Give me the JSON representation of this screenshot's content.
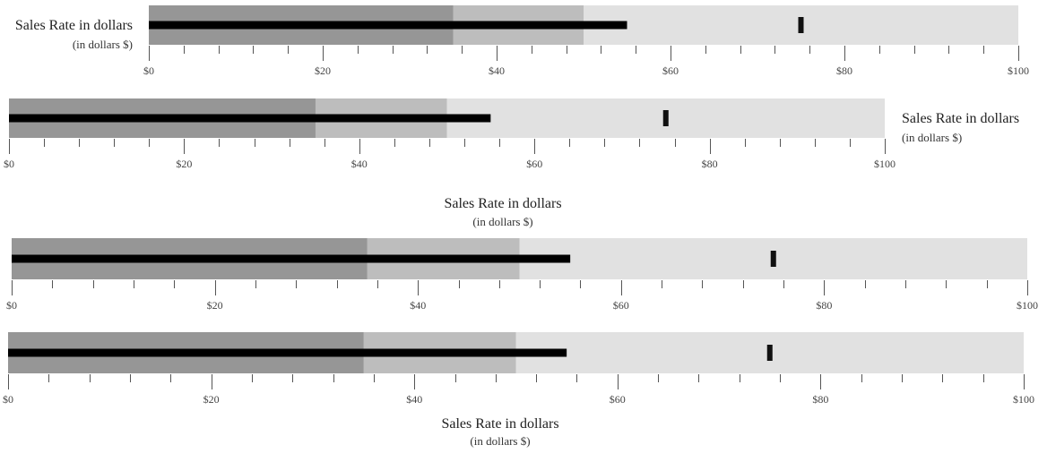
{
  "colors": {
    "range_dark": "#969696",
    "range_mid": "#bdbdbd",
    "range_light": "#e1e1e1",
    "measure": "#000000",
    "marker": "#111111"
  },
  "chart_data": [
    {
      "type": "bullet",
      "title": "Sales Rate in dollars",
      "subtitle": "(in dollars $)",
      "title_position": "left",
      "ranges": [
        35,
        50,
        100
      ],
      "measure": 55,
      "marker": 75,
      "xlim": [
        0,
        100
      ],
      "ticks": [
        "$0",
        "$20",
        "$40",
        "$60",
        "$80",
        "$100"
      ]
    },
    {
      "type": "bullet",
      "title": "Sales Rate in dollars",
      "subtitle": "(in dollars $)",
      "title_position": "right",
      "ranges": [
        35,
        50,
        100
      ],
      "measure": 55,
      "marker": 75,
      "xlim": [
        0,
        100
      ],
      "ticks": [
        "$0",
        "$20",
        "$40",
        "$60",
        "$80",
        "$100"
      ]
    },
    {
      "type": "bullet",
      "title": "Sales Rate in dollars",
      "subtitle": "(in dollars $)",
      "title_position": "top",
      "ranges": [
        35,
        50,
        100
      ],
      "measure": 55,
      "marker": 75,
      "xlim": [
        0,
        100
      ],
      "ticks": [
        "$0",
        "$20",
        "$40",
        "$60",
        "$80",
        "$100"
      ]
    },
    {
      "type": "bullet",
      "title": "Sales Rate in dollars",
      "subtitle": "(in dollars $)",
      "title_position": "bottom",
      "ranges": [
        35,
        50,
        100
      ],
      "measure": 55,
      "marker": 75,
      "xlim": [
        0,
        100
      ],
      "ticks": [
        "$0",
        "$20",
        "$40",
        "$60",
        "$80",
        "$100"
      ]
    }
  ]
}
